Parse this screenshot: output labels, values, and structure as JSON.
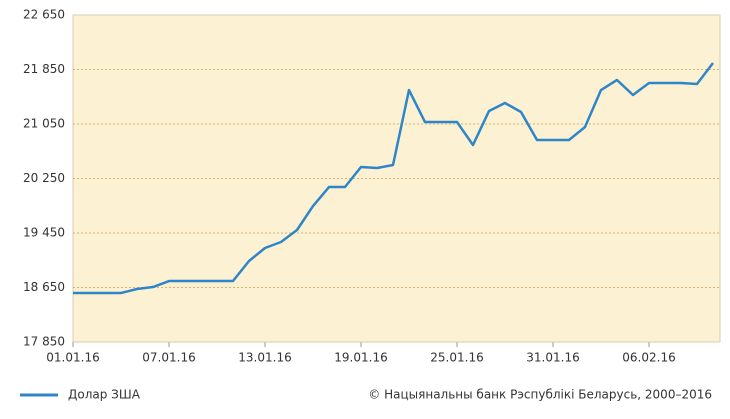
{
  "chart_data": {
    "type": "line",
    "categories": [
      "01.01.16",
      null,
      null,
      null,
      null,
      null,
      "07.01.16",
      null,
      null,
      null,
      null,
      null,
      "13.01.16",
      null,
      null,
      null,
      null,
      null,
      "19.01.16",
      null,
      null,
      null,
      null,
      null,
      "25.01.16",
      null,
      null,
      null,
      null,
      null,
      "31.01.16",
      null,
      null,
      null,
      null,
      null,
      "06.02.16",
      null,
      null,
      null,
      null
    ],
    "series": [
      {
        "name": "Долар ЗША",
        "color": "#2e86c8",
        "values": [
          18569,
          18569,
          18569,
          18569,
          18628,
          18657,
          18745,
          18745,
          18745,
          18745,
          18745,
          19039,
          19230,
          19318,
          19494,
          19846,
          20125,
          20125,
          20419,
          20404,
          20448,
          21549,
          21079,
          21079,
          21079,
          20742,
          21241,
          21358,
          21226,
          20815,
          20815,
          20815,
          21006,
          21549,
          21696,
          21476,
          21652,
          21652,
          21652,
          21637,
          21946
        ]
      }
    ],
    "ylim": [
      17850,
      22650
    ],
    "yticks": [
      {
        "value": 17850,
        "label": "17 850"
      },
      {
        "value": 18650,
        "label": "18 650"
      },
      {
        "value": 19450,
        "label": "19 450"
      },
      {
        "value": 20250,
        "label": "20 250"
      },
      {
        "value": 21050,
        "label": "21 050"
      },
      {
        "value": 21850,
        "label": "21 850"
      },
      {
        "value": 22650,
        "label": "22 650"
      }
    ],
    "grid": true,
    "source": "© Нацыянальны банк Рэспублікі Беларусь, 2000–2016"
  }
}
